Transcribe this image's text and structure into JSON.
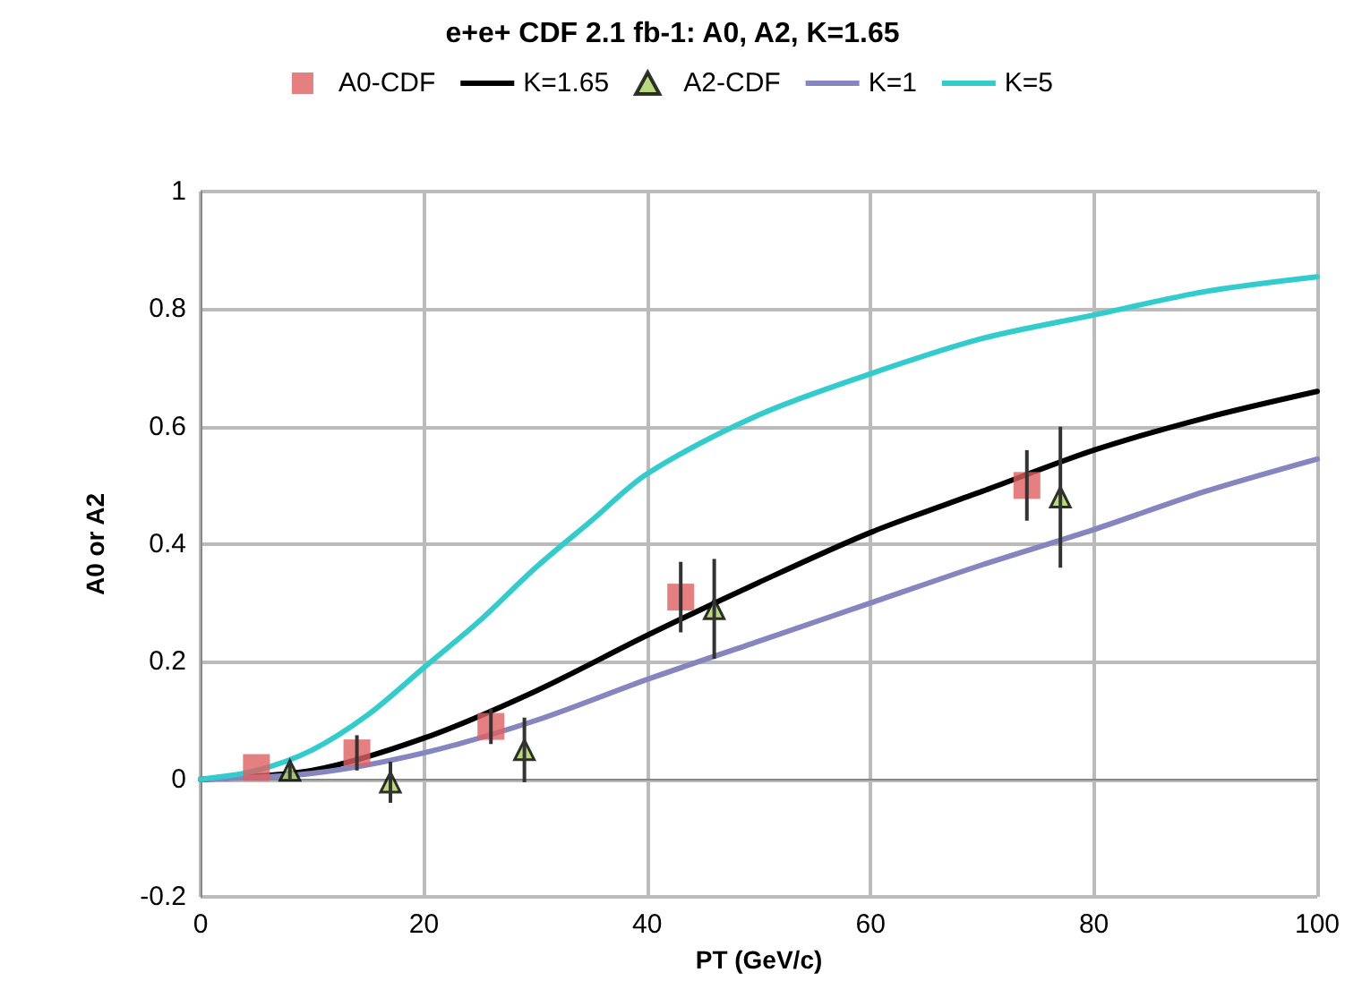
{
  "chart_data": {
    "type": "line",
    "title": "e+e+ CDF 2.1 fb-1: A0, A2, K=1.65",
    "xlabel": "PT (GeV/c)",
    "ylabel": "A0 or A2",
    "xlim": [
      0,
      100
    ],
    "xticks": [
      0,
      20,
      40,
      60,
      80,
      100
    ],
    "ylim": [
      -0.2,
      1
    ],
    "yticks": [
      -0.2,
      0,
      0.2,
      0.4,
      0.6,
      0.8,
      1
    ],
    "grid": true,
    "legend": "top",
    "series": [
      {
        "name": "A0-CDF",
        "type": "scatter",
        "marker": "square",
        "color": "#e06060",
        "x": [
          5,
          14,
          26,
          43,
          74
        ],
        "values": [
          0.02,
          0.045,
          0.09,
          0.31,
          0.5
        ],
        "errors": [
          null,
          0.03,
          0.03,
          0.06,
          0.06
        ]
      },
      {
        "name": "K=1.65",
        "marker": "none",
        "color": "#000000",
        "x": [
          0,
          10,
          20,
          30,
          40,
          50,
          60,
          70,
          80,
          90,
          100
        ],
        "values": [
          0,
          0.015,
          0.07,
          0.15,
          0.245,
          0.335,
          0.42,
          0.49,
          0.56,
          0.615,
          0.66
        ]
      },
      {
        "name": "A2-CDF",
        "type": "scatter",
        "marker": "triangle",
        "color": "#a8d060",
        "x": [
          8,
          17,
          29,
          46,
          77
        ],
        "values": [
          0.015,
          -0.005,
          0.05,
          0.29,
          0.48
        ],
        "errors": [
          0.015,
          0.035,
          0.055,
          0.085,
          0.12
        ]
      },
      {
        "name": "K=1",
        "marker": "none",
        "color": "#8585c0",
        "x": [
          0,
          10,
          20,
          30,
          40,
          50,
          60,
          70,
          80,
          90,
          100
        ],
        "values": [
          0,
          0.01,
          0.045,
          0.1,
          0.17,
          0.235,
          0.3,
          0.365,
          0.425,
          0.49,
          0.545
        ]
      },
      {
        "name": "K=5",
        "marker": "none",
        "color": "#33cccc",
        "x": [
          0,
          5,
          10,
          15,
          20,
          25,
          30,
          35,
          40,
          50,
          60,
          70,
          80,
          90,
          100
        ],
        "values": [
          0,
          0.015,
          0.05,
          0.11,
          0.19,
          0.27,
          0.36,
          0.44,
          0.52,
          0.62,
          0.69,
          0.75,
          0.79,
          0.83,
          0.855
        ]
      }
    ]
  }
}
